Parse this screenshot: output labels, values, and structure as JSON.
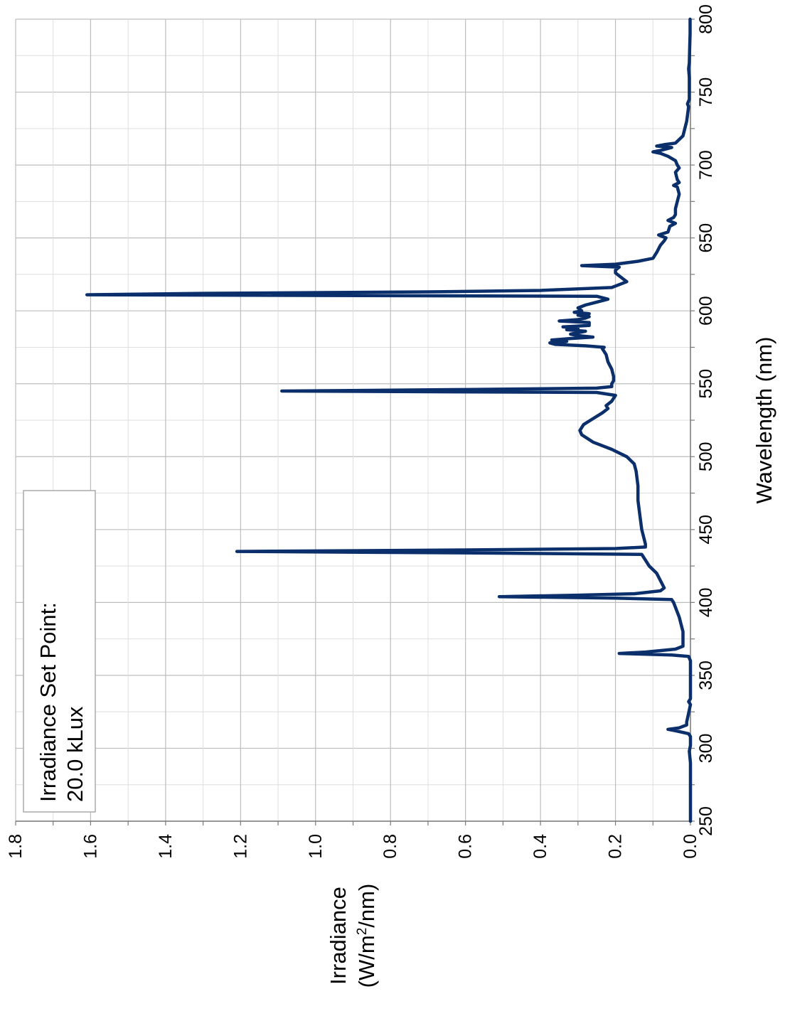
{
  "chart_data": {
    "type": "line",
    "orientation": "rotated-90-clockwise",
    "xlabel": "Wavelength (nm)",
    "ylabel_line1": "Irradiance",
    "ylabel_line2_pre": "(W/m",
    "ylabel_line2_sup": "2",
    "ylabel_line2_post": "/nm)",
    "xlim": [
      250,
      800
    ],
    "ylim": [
      0,
      1.8
    ],
    "x_ticks": [
      "250",
      "300",
      "350",
      "400",
      "450",
      "500",
      "550",
      "600",
      "650",
      "700",
      "750",
      "800"
    ],
    "y_ticks": [
      "0.0",
      "0.2",
      "0.4",
      "0.6",
      "0.8",
      "1.0",
      "1.2",
      "1.4",
      "1.6",
      "1.8"
    ],
    "grid": true,
    "annotation": {
      "line1": "Irradiance Set Point:",
      "line2": "20.0 kLux",
      "placement": "top-left"
    },
    "series": [
      {
        "color": "#0a2f6b",
        "points": [
          [
            250,
            0.0
          ],
          [
            290,
            0.0
          ],
          [
            298,
            0.003
          ],
          [
            302,
            0.0
          ],
          [
            308,
            0.0
          ],
          [
            310,
            0.005
          ],
          [
            312,
            0.04
          ],
          [
            313,
            0.06
          ],
          [
            314,
            0.03
          ],
          [
            316,
            0.01
          ],
          [
            318,
            0.01
          ],
          [
            324,
            0.005
          ],
          [
            330,
            0.0
          ],
          [
            332,
            0.005
          ],
          [
            334,
            0.0
          ],
          [
            360,
            0.0
          ],
          [
            363,
            0.005
          ],
          [
            364,
            0.05
          ],
          [
            365,
            0.19
          ],
          [
            366,
            0.12
          ],
          [
            368,
            0.04
          ],
          [
            370,
            0.02
          ],
          [
            375,
            0.02
          ],
          [
            380,
            0.02
          ],
          [
            390,
            0.03
          ],
          [
            400,
            0.045
          ],
          [
            402,
            0.05
          ],
          [
            403,
            0.2
          ],
          [
            404,
            0.51
          ],
          [
            405,
            0.3
          ],
          [
            406,
            0.15
          ],
          [
            408,
            0.08
          ],
          [
            410,
            0.07
          ],
          [
            415,
            0.08
          ],
          [
            420,
            0.09
          ],
          [
            425,
            0.11
          ],
          [
            433,
            0.13
          ],
          [
            434,
            0.6
          ],
          [
            435,
            1.21
          ],
          [
            436,
            0.6
          ],
          [
            437,
            0.2
          ],
          [
            438,
            0.12
          ],
          [
            440,
            0.12
          ],
          [
            450,
            0.13
          ],
          [
            460,
            0.135
          ],
          [
            470,
            0.14
          ],
          [
            480,
            0.14
          ],
          [
            490,
            0.145
          ],
          [
            495,
            0.15
          ],
          [
            500,
            0.17
          ],
          [
            505,
            0.21
          ],
          [
            510,
            0.26
          ],
          [
            515,
            0.29
          ],
          [
            518,
            0.295
          ],
          [
            522,
            0.285
          ],
          [
            526,
            0.26
          ],
          [
            530,
            0.235
          ],
          [
            533,
            0.22
          ],
          [
            535,
            0.225
          ],
          [
            538,
            0.21
          ],
          [
            540,
            0.205
          ],
          [
            542,
            0.2
          ],
          [
            544,
            0.25
          ],
          [
            545,
            1.09
          ],
          [
            546,
            0.6
          ],
          [
            547,
            0.25
          ],
          [
            548,
            0.21
          ],
          [
            550,
            0.21
          ],
          [
            552,
            0.205
          ],
          [
            555,
            0.205
          ],
          [
            560,
            0.21
          ],
          [
            565,
            0.22
          ],
          [
            570,
            0.225
          ],
          [
            574,
            0.235
          ],
          [
            575,
            0.23
          ],
          [
            576,
            0.28
          ],
          [
            577,
            0.36
          ],
          [
            578,
            0.375
          ],
          [
            579,
            0.33
          ],
          [
            580,
            0.37
          ],
          [
            581,
            0.32
          ],
          [
            582,
            0.26
          ],
          [
            583,
            0.3
          ],
          [
            584,
            0.32
          ],
          [
            586,
            0.28
          ],
          [
            587,
            0.33
          ],
          [
            588,
            0.3
          ],
          [
            589,
            0.34
          ],
          [
            590,
            0.27
          ],
          [
            592,
            0.27
          ],
          [
            593,
            0.35
          ],
          [
            594,
            0.3
          ],
          [
            595,
            0.28
          ],
          [
            596,
            0.27
          ],
          [
            597,
            0.3
          ],
          [
            598,
            0.27
          ],
          [
            599,
            0.31
          ],
          [
            600,
            0.29
          ],
          [
            602,
            0.3
          ],
          [
            604,
            0.28
          ],
          [
            606,
            0.25
          ],
          [
            608,
            0.22
          ],
          [
            610,
            0.25
          ],
          [
            611,
            1.61
          ],
          [
            612,
            1.3
          ],
          [
            613,
            0.7
          ],
          [
            614,
            0.4
          ],
          [
            616,
            0.21
          ],
          [
            618,
            0.19
          ],
          [
            620,
            0.17
          ],
          [
            622,
            0.18
          ],
          [
            624,
            0.19
          ],
          [
            626,
            0.2
          ],
          [
            628,
            0.2
          ],
          [
            630,
            0.19
          ],
          [
            631,
            0.29
          ],
          [
            632,
            0.2
          ],
          [
            634,
            0.14
          ],
          [
            636,
            0.1
          ],
          [
            640,
            0.09
          ],
          [
            645,
            0.08
          ],
          [
            648,
            0.07
          ],
          [
            650,
            0.065
          ],
          [
            652,
            0.085
          ],
          [
            654,
            0.06
          ],
          [
            658,
            0.055
          ],
          [
            660,
            0.04
          ],
          [
            662,
            0.06
          ],
          [
            664,
            0.045
          ],
          [
            666,
            0.04
          ],
          [
            670,
            0.04
          ],
          [
            675,
            0.035
          ],
          [
            680,
            0.03
          ],
          [
            685,
            0.035
          ],
          [
            686,
            0.045
          ],
          [
            688,
            0.03
          ],
          [
            690,
            0.035
          ],
          [
            695,
            0.04
          ],
          [
            698,
            0.03
          ],
          [
            700,
            0.035
          ],
          [
            703,
            0.04
          ],
          [
            706,
            0.06
          ],
          [
            708,
            0.08
          ],
          [
            709,
            0.1
          ],
          [
            710,
            0.08
          ],
          [
            712,
            0.05
          ],
          [
            713,
            0.09
          ],
          [
            714,
            0.07
          ],
          [
            715,
            0.04
          ],
          [
            720,
            0.02
          ],
          [
            730,
            0.01
          ],
          [
            740,
            0.005
          ],
          [
            742,
            0.008
          ],
          [
            745,
            0.003
          ],
          [
            760,
            0.003
          ],
          [
            766,
            0.005
          ],
          [
            770,
            0.003
          ],
          [
            780,
            0.002
          ],
          [
            790,
            0.001
          ],
          [
            800,
            0.001
          ]
        ]
      }
    ]
  }
}
